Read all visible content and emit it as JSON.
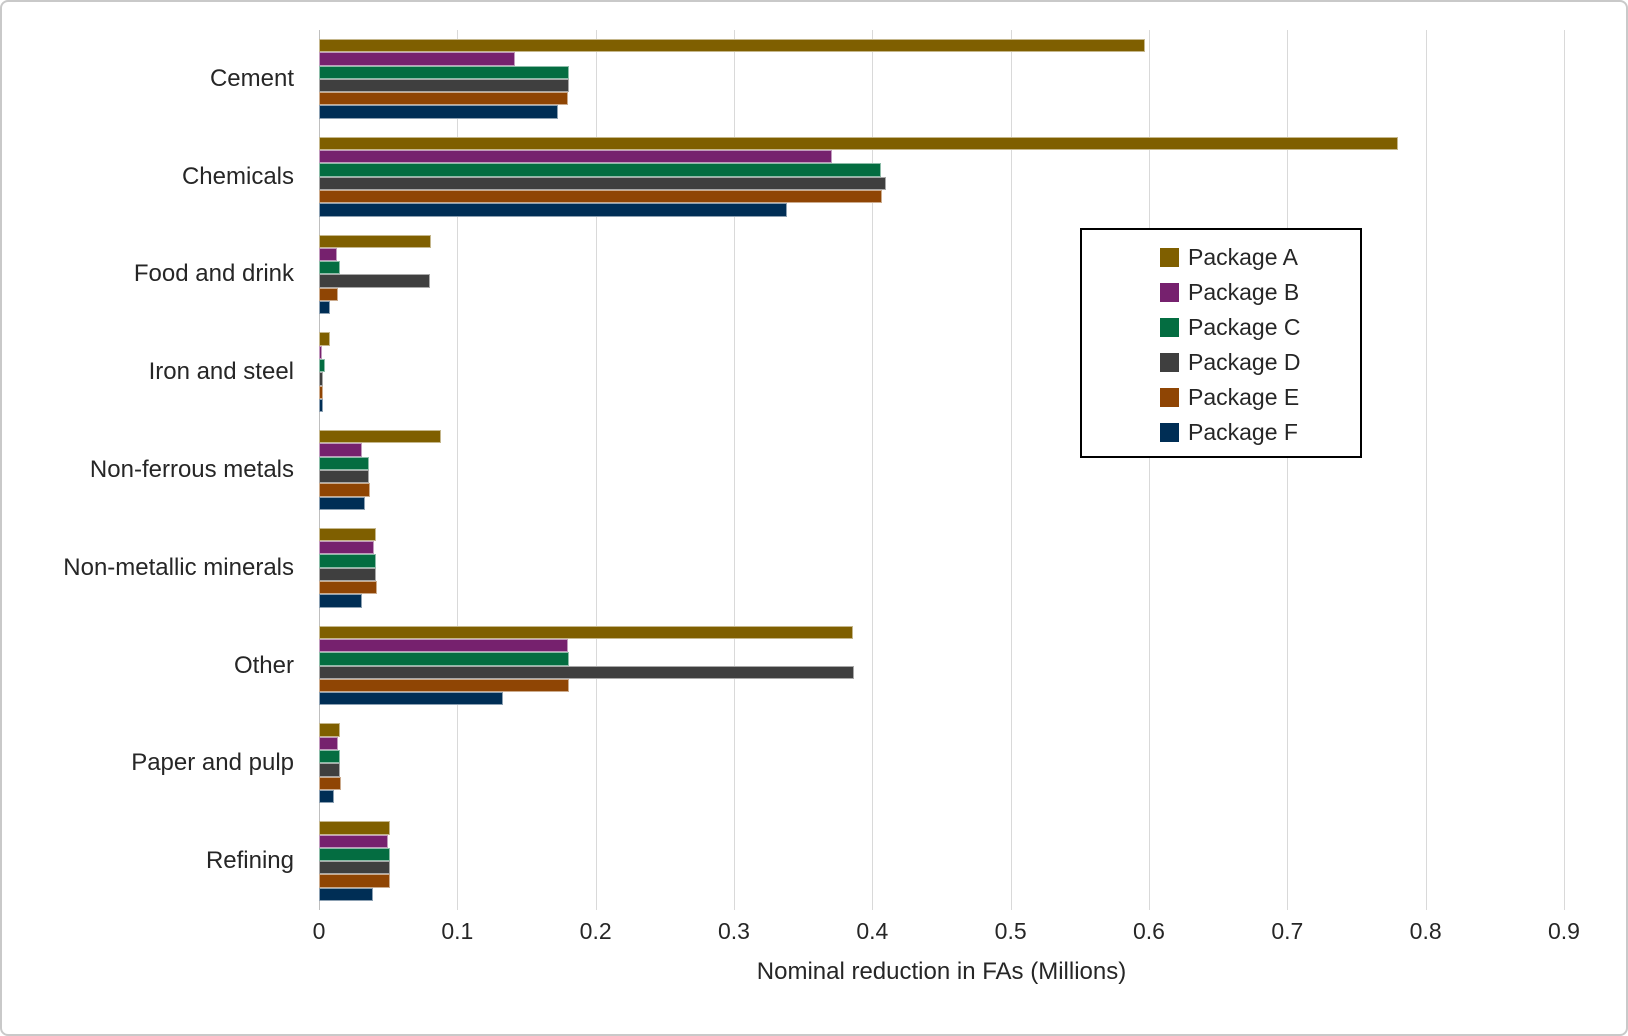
{
  "chart_data": {
    "type": "bar",
    "orientation": "horizontal",
    "title": "",
    "xlabel": "Nominal reduction in FAs (Millions)",
    "ylabel": "",
    "xlim": [
      0,
      0.9
    ],
    "xticks": [
      0,
      0.1,
      0.2,
      0.3,
      0.4,
      0.5,
      0.6,
      0.7,
      0.8,
      0.9
    ],
    "grid": true,
    "legend_position": "inside-right",
    "categories": [
      "Cement",
      "Chemicals",
      "Food and drink",
      "Iron and steel",
      "Non-ferrous metals",
      "Non-metallic minerals",
      "Other",
      "Paper and pulp",
      "Refining"
    ],
    "series": [
      {
        "name": "Package A",
        "color": "#7F5F00",
        "values": [
          0.597,
          0.78,
          0.081,
          0.008,
          0.088,
          0.041,
          0.386,
          0.015,
          0.051
        ]
      },
      {
        "name": "Package B",
        "color": "#76216E",
        "values": [
          0.142,
          0.371,
          0.013,
          0.002,
          0.031,
          0.04,
          0.18,
          0.014,
          0.05
        ]
      },
      {
        "name": "Package C",
        "color": "#046D41",
        "values": [
          0.181,
          0.406,
          0.015,
          0.004,
          0.036,
          0.041,
          0.181,
          0.015,
          0.051
        ]
      },
      {
        "name": "Package D",
        "color": "#3F3F3F",
        "values": [
          0.181,
          0.41,
          0.08,
          0.003,
          0.036,
          0.041,
          0.387,
          0.015,
          0.051
        ]
      },
      {
        "name": "Package E",
        "color": "#8F4504",
        "values": [
          0.18,
          0.407,
          0.014,
          0.003,
          0.037,
          0.042,
          0.181,
          0.016,
          0.051
        ]
      },
      {
        "name": "Package F",
        "color": "#002E55",
        "values": [
          0.173,
          0.338,
          0.008,
          0.003,
          0.033,
          0.031,
          0.133,
          0.011,
          0.039
        ]
      }
    ],
    "colors": {
      "grid": "#d9d9d9",
      "axis_line": "#bfbfbf",
      "text": "#262626",
      "background": "#ffffff",
      "legend_border": "#000000"
    }
  }
}
